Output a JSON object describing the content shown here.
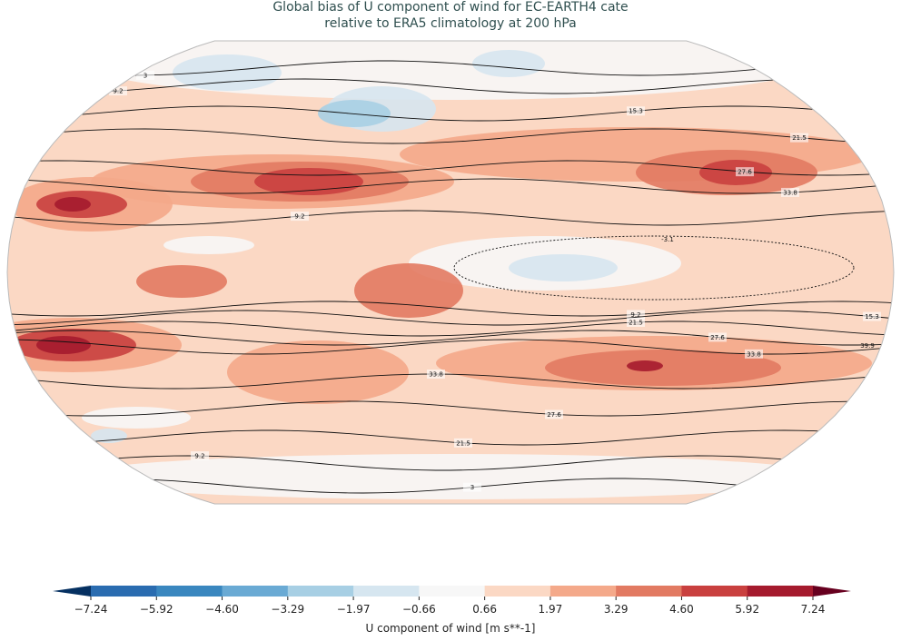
{
  "title": [
    "Global bias of U component of wind for EC-EARTH4 cate",
    "relative to ERA5 climatology at 200 hPa"
  ],
  "contour_levels": [
    -3.1,
    3.0,
    9.2,
    15.3,
    21.5,
    27.6,
    33.8,
    39.9
  ],
  "colorbar": {
    "label": "U component of wind [m s**-1]",
    "ticks": [
      {
        "value": -7.24,
        "label": "−7.24"
      },
      {
        "value": -5.92,
        "label": "−5.92"
      },
      {
        "value": -4.6,
        "label": "−4.60"
      },
      {
        "value": -3.29,
        "label": "−3.29"
      },
      {
        "value": -1.97,
        "label": "−1.97"
      },
      {
        "value": -0.66,
        "label": "−0.66"
      },
      0.66,
      1.97,
      3.29,
      {
        "value": 4.6,
        "label": "4.60"
      },
      5.92,
      7.24
    ],
    "colors": [
      "#053061",
      "#2a6cb0",
      "#3a87bf",
      "#6aaad4",
      "#a7cfe4",
      "#d6e6f0",
      "#f7f7f7",
      "#fbd8c4",
      "#f4a98a",
      "#e27a62",
      "#c9403f",
      "#a51b2e",
      "#67001f"
    ]
  }
}
